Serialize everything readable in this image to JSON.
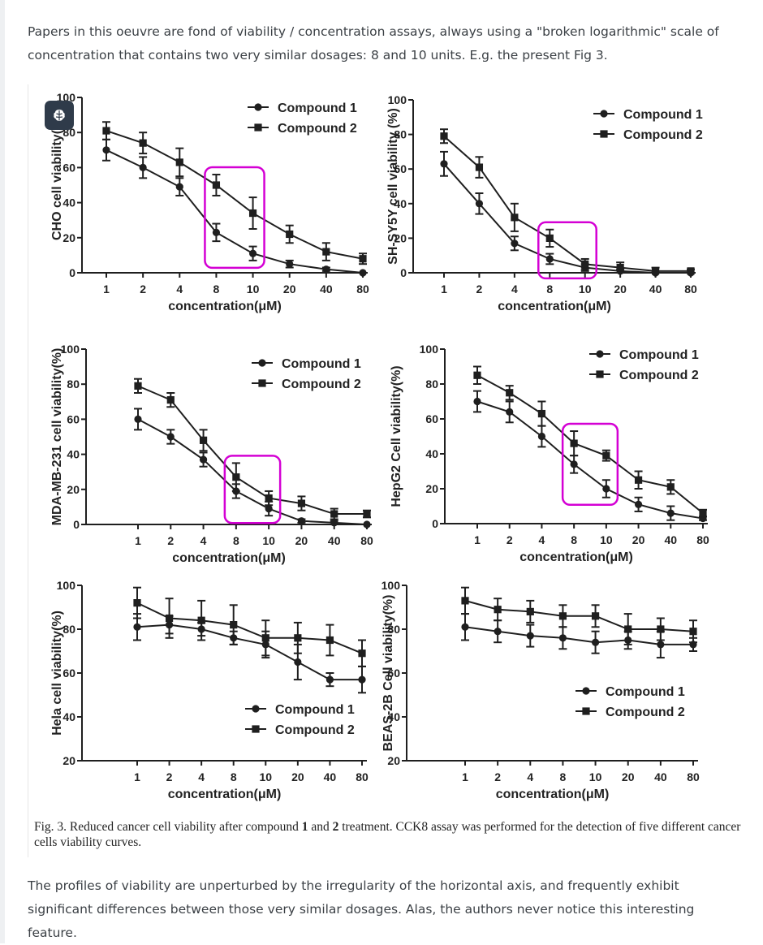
{
  "post": {
    "intro": "Papers in this oeuvre are fond of viability / concentration assays, always using a \"broken logarithmic\" scale of concentration that contains two very similar dosages: 8 and 10 units. E.g. the present Fig 3.",
    "caption_prefix": "Fig. 3. Reduced cancer cell viability after compound ",
    "caption_c1": "1",
    "caption_mid": " and ",
    "caption_c2": "2",
    "caption_suffix": " treatment. CCK8 assay was performed for the detection of five different cancer cells viability curves.",
    "outro": "The profiles of viability are unperturbed by the irregularity of the horizontal axis, and frequently exhibit significant differences between those very similar dosages. Alas, the authors never notice this interesting feature."
  },
  "colors": {
    "series": "#1f1f1f",
    "highlight": "#d400d4",
    "text": "#3b4045",
    "badge": "#2f3b4a"
  },
  "badge_icon": "brain-icon",
  "chart_data": [
    {
      "type": "line",
      "ylabel": "CHO cell viability(",
      "xlabel": "concentration(μM)",
      "categories": [
        "1",
        "2",
        "4",
        "8",
        "10",
        "20",
        "40",
        "80"
      ],
      "ylim": [
        0,
        100
      ],
      "yticks": [
        0,
        20,
        40,
        60,
        80,
        100
      ],
      "legend": "top-right",
      "highlight": [
        "8",
        "10"
      ],
      "series": [
        {
          "name": "Compound 1",
          "marker": "circle",
          "values": [
            70,
            60,
            49,
            23,
            11,
            5,
            2,
            0
          ],
          "errors": [
            6,
            6,
            5,
            5,
            4,
            2,
            1,
            0
          ]
        },
        {
          "name": "Compound 2",
          "marker": "square",
          "values": [
            81,
            74,
            63,
            50,
            34,
            22,
            12,
            8
          ],
          "errors": [
            5,
            6,
            8,
            6,
            9,
            5,
            5,
            3
          ]
        }
      ]
    },
    {
      "type": "line",
      "ylabel": "SH-SY5Y cell viability (%)",
      "xlabel": "concentration(μM)",
      "categories": [
        "1",
        "2",
        "4",
        "8",
        "10",
        "20",
        "40",
        "80"
      ],
      "ylim": [
        0,
        100
      ],
      "yticks": [
        0,
        20,
        40,
        60,
        80,
        100
      ],
      "legend": "top-right",
      "highlight": [
        "8",
        "10"
      ],
      "series": [
        {
          "name": "Compound 1",
          "marker": "circle",
          "values": [
            63,
            40,
            17,
            8,
            3,
            1,
            0,
            0
          ],
          "errors": [
            7,
            6,
            4,
            3,
            2,
            1,
            1,
            0
          ]
        },
        {
          "name": "Compound 2",
          "marker": "square",
          "values": [
            79,
            61,
            32,
            20,
            5,
            3,
            1,
            1
          ],
          "errors": [
            4,
            6,
            8,
            5,
            3,
            3,
            2,
            1
          ]
        }
      ]
    },
    {
      "type": "line",
      "ylabel": "MDA-MB-231 cell viability(%)",
      "xlabel": "concentration(μM)",
      "categories": [
        "1",
        "2",
        "4",
        "8",
        "10",
        "20",
        "40",
        "80"
      ],
      "ylim": [
        0,
        100
      ],
      "yticks": [
        0,
        20,
        40,
        60,
        80,
        100
      ],
      "legend": "top-right",
      "highlight": [
        "8",
        "10"
      ],
      "series": [
        {
          "name": "Compound 1",
          "marker": "circle",
          "values": [
            60,
            50,
            37,
            19,
            9,
            2,
            1,
            0
          ],
          "errors": [
            6,
            4,
            4,
            4,
            4,
            1,
            1,
            0
          ]
        },
        {
          "name": "Compound 2",
          "marker": "square",
          "values": [
            79,
            71,
            48,
            27,
            15,
            12,
            6,
            6
          ],
          "errors": [
            4,
            4,
            6,
            8,
            4,
            4,
            3,
            2
          ]
        }
      ]
    },
    {
      "type": "line",
      "ylabel": "HepG2 Cell viability(%)",
      "xlabel": "concentration(μM)",
      "categories": [
        "1",
        "2",
        "4",
        "8",
        "10",
        "20",
        "40",
        "80"
      ],
      "ylim": [
        0,
        100
      ],
      "yticks": [
        0,
        20,
        40,
        60,
        80,
        100
      ],
      "legend": "top-right",
      "highlight": [
        "8",
        "10"
      ],
      "series": [
        {
          "name": "Compound 1",
          "marker": "circle",
          "values": [
            70,
            64,
            50,
            34,
            20,
            11,
            6,
            3
          ],
          "errors": [
            6,
            6,
            6,
            5,
            5,
            4,
            4,
            1
          ]
        },
        {
          "name": "Compound 2",
          "marker": "square",
          "values": [
            85,
            75,
            63,
            46,
            39,
            25,
            21,
            6
          ],
          "errors": [
            5,
            4,
            7,
            7,
            3,
            5,
            4,
            2
          ]
        }
      ]
    },
    {
      "type": "line",
      "ylabel": "Hela cell viability(%)",
      "xlabel": "concentration(μM)",
      "categories": [
        "1",
        "2",
        "4",
        "8",
        "10",
        "20",
        "40",
        "80"
      ],
      "ylim": [
        20,
        100
      ],
      "yticks": [
        20,
        40,
        60,
        80,
        100
      ],
      "legend": "bottom-right",
      "series": [
        {
          "name": "Compound 1",
          "marker": "circle",
          "values": [
            81,
            82,
            80,
            76,
            73,
            65,
            57,
            57
          ],
          "errors": [
            6,
            4,
            3,
            3,
            6,
            8,
            3,
            6
          ]
        },
        {
          "name": "Compound 2",
          "marker": "square",
          "values": [
            92,
            85,
            84,
            82,
            76,
            76,
            75,
            69
          ],
          "errors": [
            7,
            9,
            9,
            9,
            8,
            7,
            7,
            6
          ]
        }
      ]
    },
    {
      "type": "line",
      "ylabel": "BEAS-2B Cell viability(%)",
      "xlabel": "concentration(μM)",
      "categories": [
        "1",
        "2",
        "4",
        "8",
        "10",
        "20",
        "40",
        "80"
      ],
      "ylim": [
        20,
        100
      ],
      "yticks": [
        20,
        40,
        60,
        80,
        100
      ],
      "legend": "right",
      "series": [
        {
          "name": "Compound 1",
          "marker": "circle",
          "values": [
            81,
            79,
            77,
            76,
            74,
            75,
            73,
            73
          ],
          "errors": [
            6,
            5,
            5,
            5,
            5,
            4,
            6,
            3
          ]
        },
        {
          "name": "Compound 2",
          "marker": "square",
          "values": [
            93,
            89,
            88,
            86,
            86,
            80,
            80,
            79
          ],
          "errors": [
            6,
            5,
            5,
            5,
            5,
            7,
            5,
            5
          ]
        }
      ]
    }
  ]
}
